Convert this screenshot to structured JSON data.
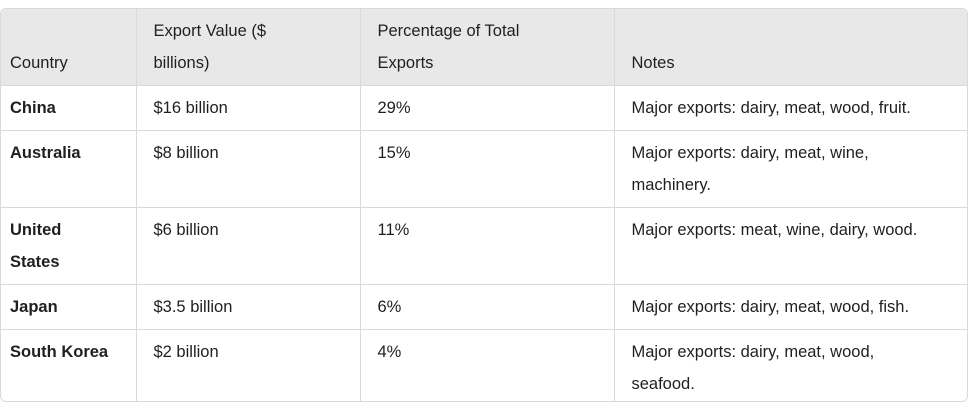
{
  "table": {
    "headers": [
      "Country",
      "Export Value ($ billions)",
      "Percentage of Total Exports",
      "Notes"
    ],
    "rows": [
      [
        "China",
        "$16 billion",
        "29%",
        "Major exports: dairy, meat, wood, fruit."
      ],
      [
        "Australia",
        "$8 billion",
        "15%",
        "Major exports: dairy, meat, wine, machinery."
      ],
      [
        "United States",
        "$6 billion",
        "11%",
        "Major exports: meat, wine, dairy, wood."
      ],
      [
        "Japan",
        "$3.5 billion",
        "6%",
        "Major exports: dairy, meat, wood, fish."
      ],
      [
        "South Korea",
        "$2 billion",
        "4%",
        "Major exports: dairy, meat, wood, seafood."
      ]
    ]
  }
}
